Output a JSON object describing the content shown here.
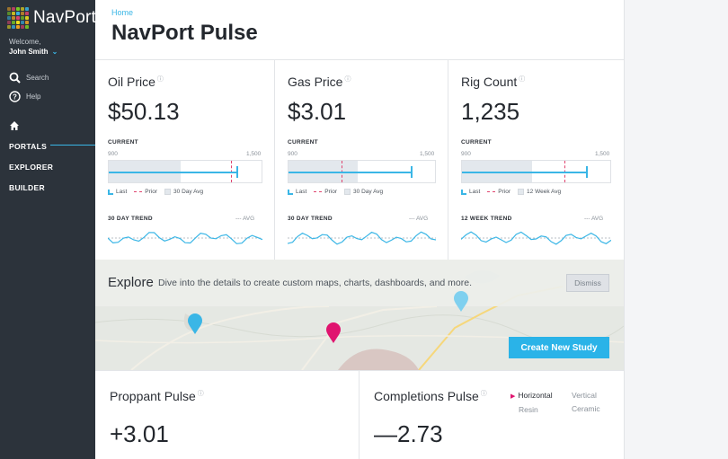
{
  "app": {
    "name": "NavPort"
  },
  "sidebar": {
    "welcome": "Welcome,",
    "user": "John Smith",
    "search": "Search",
    "help": "Help",
    "nav": [
      "PORTALS",
      "EXPLORER",
      "BUILDER"
    ]
  },
  "breadcrumb": "Home",
  "page_title": "NavPort Pulse",
  "cards": [
    {
      "title": "Oil Price",
      "value": "$50.13",
      "current_label": "CURRENT",
      "range_min": "900",
      "range_max": "1,500",
      "legend": [
        "Last",
        "Prior",
        "30 Day Avg"
      ],
      "trend_label": "30 DAY TREND",
      "avg_label": "--- AVG",
      "last": 0.84,
      "prior": 0.8,
      "avg": 0.47
    },
    {
      "title": "Gas Price",
      "value": "$3.01",
      "current_label": "CURRENT",
      "range_min": "900",
      "range_max": "1,500",
      "legend": [
        "Last",
        "Prior",
        "30 Day Avg"
      ],
      "trend_label": "30 DAY TREND",
      "avg_label": "--- AVG",
      "last": 0.84,
      "prior": 0.36,
      "avg": 0.47
    },
    {
      "title": "Rig Count",
      "value": "1,235",
      "current_label": "CURRENT",
      "range_min": "900",
      "range_max": "1,500",
      "legend": [
        "Last",
        "Prior",
        "12 Week Avg"
      ],
      "trend_label": "12 WEEK TREND",
      "avg_label": "--- AVG",
      "last": 0.84,
      "prior": 0.69,
      "avg": 0.47
    }
  ],
  "explore": {
    "title": "Explore",
    "subtitle": "Dive into the details to create custom maps, charts, dashboards, and more.",
    "dismiss": "Dismiss",
    "create": "Create New Study"
  },
  "bottom": {
    "proppant": {
      "title": "Proppant Pulse",
      "value": "+3.01"
    },
    "completions": {
      "title": "Completions Pulse",
      "value": "—2.73",
      "options": [
        "Horizontal",
        "Vertical",
        "Resin",
        "Ceramic"
      ],
      "selected": "Horizontal"
    }
  },
  "colors": {
    "accent": "#3ab6e6",
    "prior": "#e0446f",
    "sidebar": "#2c333b",
    "pin_blue": "#3ab6e6",
    "pin_pink": "#e0146f"
  }
}
